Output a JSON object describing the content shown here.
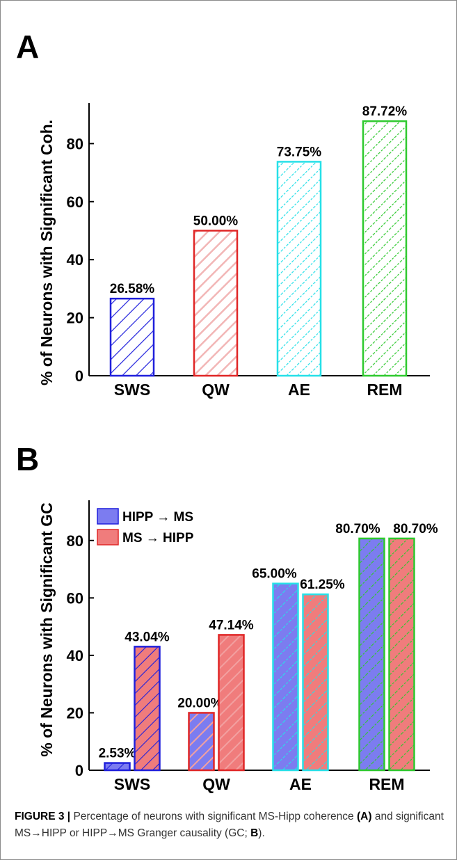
{
  "caption": {
    "label": "FIGURE 3 |",
    "text_1": " Percentage of neurons with significant MS-Hipp coherence ",
    "ref_a": "(A)",
    "text_2": " and significant MS→HIPP or HIPP→MS Granger causality (GC; ",
    "ref_b": "B",
    "text_3": ")."
  },
  "chart_data": [
    {
      "panel": "A",
      "type": "bar",
      "ylabel": "% of Neurons with Significant Coh.",
      "xlabel": "",
      "ylim": [
        0,
        94
      ],
      "yticks": [
        0,
        20,
        40,
        60,
        80
      ],
      "categories": [
        "SWS",
        "QW",
        "AE",
        "REM"
      ],
      "values": [
        26.58,
        50.0,
        73.75,
        87.72
      ],
      "value_labels": [
        "26.58%",
        "50.00%",
        "73.75%",
        "87.72%"
      ],
      "bar_edge_colors": [
        "#1f1fdc",
        "#e02626",
        "#26e0e8",
        "#2ec92e"
      ],
      "hatch_colors": [
        "#1f1fdc",
        "#f2b6b6",
        "#26e0e8",
        "#2ec92e"
      ],
      "grid": false
    },
    {
      "panel": "B",
      "type": "bar",
      "ylabel": "% of Neurons with Significant GC",
      "xlabel": "",
      "ylim": [
        0,
        94
      ],
      "yticks": [
        0,
        20,
        40,
        60,
        80
      ],
      "categories": [
        "SWS",
        "QW",
        "AE",
        "REM"
      ],
      "series": [
        {
          "name": "HIPP → MS",
          "values": [
            2.53,
            20.0,
            65.0,
            80.7
          ],
          "value_labels": [
            "2.53%",
            "20.00%",
            "65.00%",
            "80.70%"
          ],
          "fill": "#7c7cf0"
        },
        {
          "name": "MS → HIPP",
          "values": [
            43.04,
            47.14,
            61.25,
            80.7
          ],
          "value_labels": [
            "43.04%",
            "47.14%",
            "61.25%",
            "80.70%"
          ],
          "fill": "#f07c7c"
        }
      ],
      "category_edge_colors": [
        "#1f1fdc",
        "#e02626",
        "#26e0e8",
        "#2ec92e"
      ],
      "legend_position": "top-left",
      "grid": false
    }
  ]
}
